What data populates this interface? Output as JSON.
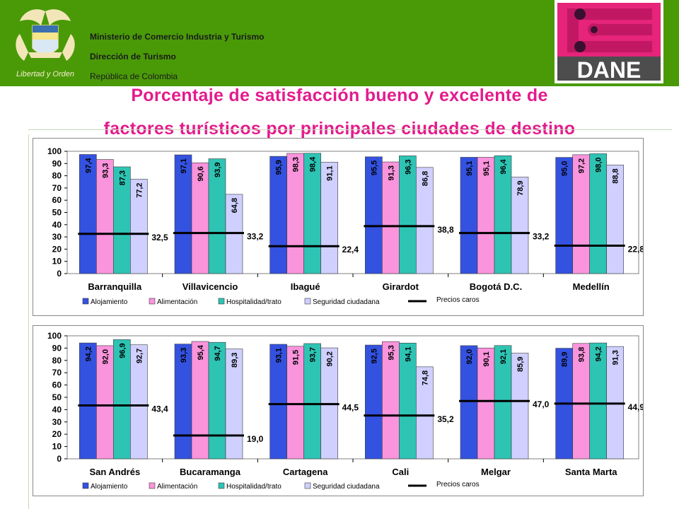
{
  "header": {
    "org_lines": [
      "Ministerio de Comercio Industria y Turismo",
      "Dirección de Turismo",
      "República de Colombia"
    ],
    "seal_text": "Libertad y Orden",
    "dane_logo_text": "DANE",
    "background_color": "#4a9a08"
  },
  "title": {
    "line1": "Porcentaje de satisfacción bueno y excelente de",
    "line2": "factores turísticos por principales ciudades de destino",
    "color": "#e31b8d"
  },
  "legend": {
    "labels": [
      "Alojamiento",
      "Alimentación",
      "Hospitalidad/trato",
      "Seguridad ciudadana"
    ],
    "line_label": "Precios caros"
  },
  "colors": [
    "#3452e0",
    "#fa94dc",
    "#2ec4b4",
    "#cfd0ff"
  ],
  "chart_data": [
    {
      "type": "bar",
      "ylim": [
        0,
        100
      ],
      "yticks": [
        "0",
        "10",
        "20",
        "30",
        "40",
        "50",
        "60",
        "70",
        "80",
        "90",
        "100"
      ],
      "categories": [
        "Barranquilla",
        "Villavicencio",
        "Ibagué",
        "Girardot",
        "Bogotá D.C.",
        "Medellín"
      ],
      "series": [
        {
          "name": "Alojamiento",
          "values": [
            97.4,
            97.1,
            95.9,
            95.5,
            95.1,
            95.0
          ],
          "labels": [
            "97,4",
            "97,1",
            "95,9",
            "95,5",
            "95,1",
            "95,0"
          ]
        },
        {
          "name": "Alimentación",
          "values": [
            93.3,
            90.6,
            98.3,
            91.3,
            95.1,
            97.2
          ],
          "labels": [
            "93,3",
            "90,6",
            "98,3",
            "91,3",
            "95,1",
            "97,2"
          ]
        },
        {
          "name": "Hospitalidad/trato",
          "values": [
            87.3,
            93.9,
            98.4,
            96.3,
            96.4,
            98.0
          ],
          "labels": [
            "87,3",
            "93,9",
            "98,4",
            "96,3",
            "96,4",
            "98,0"
          ]
        },
        {
          "name": "Seguridad ciudadana",
          "values": [
            77.2,
            64.8,
            91.1,
            86.8,
            78.9,
            88.8
          ],
          "labels": [
            "77,2",
            "64,8",
            "91,1",
            "86,8",
            "78,9",
            "88,8"
          ]
        }
      ],
      "line_series": {
        "name": "Precios caros",
        "values": [
          32.5,
          33.2,
          22.4,
          38.8,
          33.2,
          22.8
        ],
        "labels": [
          "32,5",
          "33,2",
          "22,4",
          "38,8",
          "33,2",
          "22,8"
        ]
      }
    },
    {
      "type": "bar",
      "ylim": [
        0,
        100
      ],
      "yticks": [
        "0",
        "10",
        "20",
        "30",
        "40",
        "50",
        "60",
        "70",
        "80",
        "90",
        "100"
      ],
      "categories": [
        "San Andrés",
        "Bucaramanga",
        "Cartagena",
        "Cali",
        "Melgar",
        "Santa Marta"
      ],
      "series": [
        {
          "name": "Alojamiento",
          "values": [
            94.2,
            93.3,
            93.1,
            92.5,
            92.0,
            89.9
          ],
          "labels": [
            "94,2",
            "93,3",
            "93,1",
            "92,5",
            "92,0",
            "89,9"
          ]
        },
        {
          "name": "Alimentación",
          "values": [
            92.0,
            95.4,
            91.5,
            95.3,
            90.1,
            93.8
          ],
          "labels": [
            "92,0",
            "95,4",
            "91,5",
            "95,3",
            "90,1",
            "93,8"
          ]
        },
        {
          "name": "Hospitalidad/trato",
          "values": [
            96.9,
            94.7,
            93.7,
            94.1,
            92.1,
            94.2
          ],
          "labels": [
            "96,9",
            "94,7",
            "93,7",
            "94,1",
            "92,1",
            "94,2"
          ]
        },
        {
          "name": "Seguridad ciudadana",
          "values": [
            92.7,
            89.3,
            90.2,
            74.8,
            85.9,
            91.3
          ],
          "labels": [
            "92,7",
            "89,3",
            "90,2",
            "74,8",
            "85,9",
            "91,3"
          ]
        }
      ],
      "line_series": {
        "name": "Precios caros",
        "values": [
          43.4,
          19.0,
          44.5,
          35.2,
          47.0,
          44.9
        ],
        "labels": [
          "43,4",
          "19,0",
          "44,5",
          "35,2",
          "47,0",
          "44,9"
        ]
      }
    }
  ]
}
